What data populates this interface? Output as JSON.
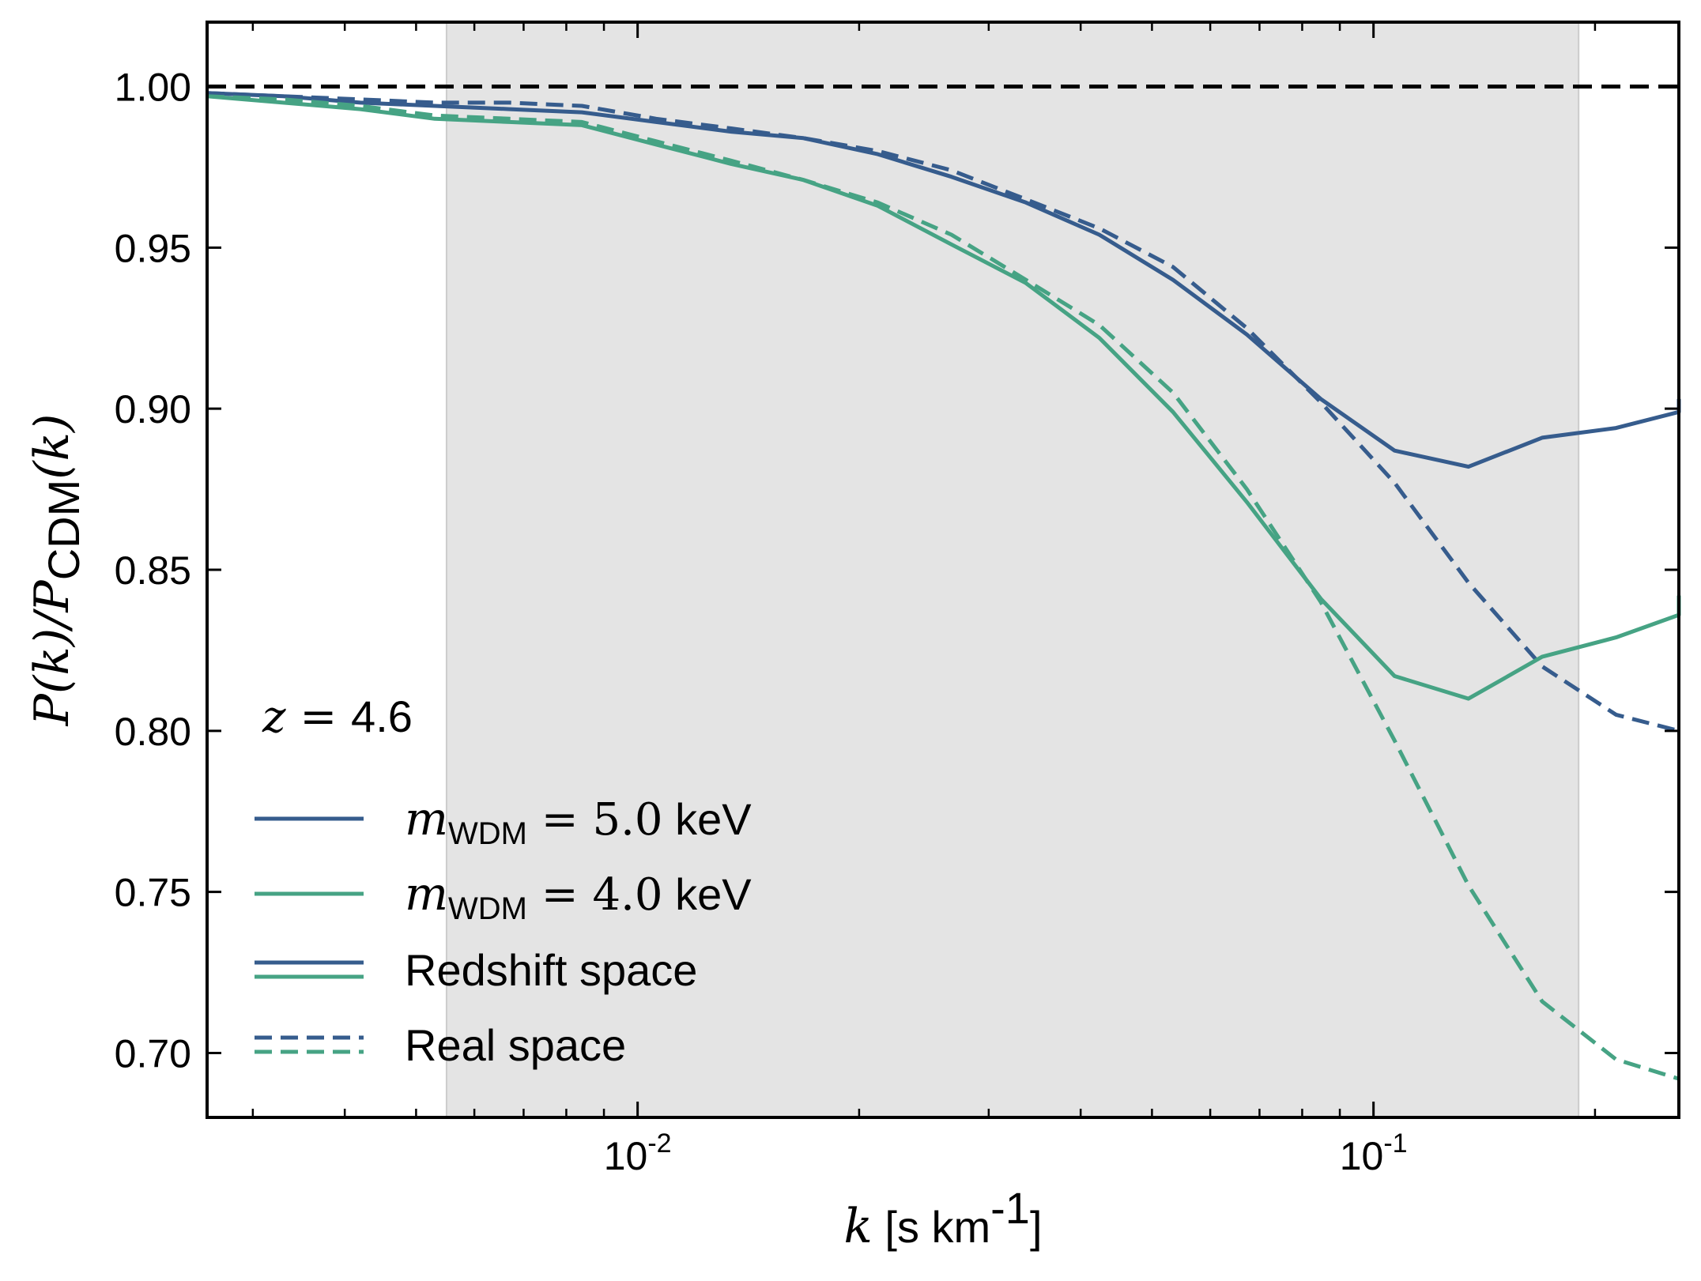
{
  "chart_data": {
    "type": "line",
    "xscale": "log",
    "xlim": [
      0.0026,
      0.26
    ],
    "ylim": [
      0.68,
      1.02
    ],
    "xlabel": {
      "symbol": "k",
      "units": "[s km",
      "exp": "-1",
      "close": "]"
    },
    "ylabel": {
      "text": "P(k)/P",
      "sub": "CDM",
      "tail": "(k)"
    },
    "x_ticks": [
      {
        "value": 0.01,
        "base": "10",
        "exp": "-2"
      },
      {
        "value": 0.1,
        "base": "10",
        "exp": "-1"
      }
    ],
    "y_ticks": [
      {
        "value": 1.0,
        "label": "1.00"
      },
      {
        "value": 0.95,
        "label": "0.95"
      },
      {
        "value": 0.9,
        "label": "0.90"
      },
      {
        "value": 0.85,
        "label": "0.85"
      },
      {
        "value": 0.8,
        "label": "0.80"
      },
      {
        "value": 0.75,
        "label": "0.75"
      },
      {
        "value": 0.7,
        "label": "0.70"
      }
    ],
    "shaded_region": {
      "x": [
        0.0055,
        0.19
      ],
      "color": "#e4e4e4"
    },
    "reference_line": {
      "y": 1.0,
      "style": "dashed",
      "color": "#000000"
    },
    "annotation": {
      "symbol": "z",
      "equals": " = ",
      "value": "4.6"
    },
    "colors": {
      "m5": "#365c8d",
      "m4": "#46a384"
    },
    "series": [
      {
        "name": "m_WDM = 5.0 keV, Redshift space",
        "color": "m5",
        "style": "solid",
        "x": [
          0.0026,
          0.0033,
          0.0042,
          0.0053,
          0.0067,
          0.0084,
          0.0106,
          0.0134,
          0.0168,
          0.0212,
          0.0267,
          0.0337,
          0.0424,
          0.0534,
          0.0673,
          0.0848,
          0.1068,
          0.1346,
          0.1695,
          0.2136,
          0.2691,
          0.26
        ],
        "y": [
          0.998,
          0.997,
          0.995,
          0.994,
          0.993,
          0.992,
          0.989,
          0.986,
          0.984,
          0.979,
          0.972,
          0.964,
          0.954,
          0.94,
          0.923,
          0.903,
          0.887,
          0.882,
          0.891,
          0.894,
          0.899,
          0.903
        ]
      },
      {
        "name": "m_WDM = 5.0 keV, Real space",
        "color": "m5",
        "style": "dashed",
        "x": [
          0.0026,
          0.0033,
          0.0042,
          0.0053,
          0.0067,
          0.0084,
          0.0106,
          0.0134,
          0.0168,
          0.0212,
          0.0267,
          0.0337,
          0.0424,
          0.0534,
          0.0673,
          0.0848,
          0.1068,
          0.1346,
          0.1695,
          0.2136,
          0.2691,
          0.26
        ],
        "y": [
          0.998,
          0.997,
          0.996,
          0.995,
          0.995,
          0.994,
          0.99,
          0.987,
          0.984,
          0.98,
          0.974,
          0.965,
          0.956,
          0.944,
          0.925,
          0.902,
          0.877,
          0.846,
          0.82,
          0.805,
          0.8,
          0.8
        ]
      },
      {
        "name": "m_WDM = 4.0 keV, Redshift space",
        "color": "m4",
        "style": "solid",
        "x": [
          0.0026,
          0.0033,
          0.0042,
          0.0053,
          0.0067,
          0.0084,
          0.0106,
          0.0134,
          0.0168,
          0.0212,
          0.0267,
          0.0337,
          0.0424,
          0.0534,
          0.0673,
          0.0848,
          0.1068,
          0.1346,
          0.1695,
          0.2136,
          0.2691,
          0.26
        ],
        "y": [
          0.997,
          0.995,
          0.993,
          0.99,
          0.989,
          0.988,
          0.982,
          0.976,
          0.971,
          0.963,
          0.951,
          0.939,
          0.922,
          0.899,
          0.871,
          0.841,
          0.817,
          0.81,
          0.823,
          0.829,
          0.836,
          0.842
        ]
      },
      {
        "name": "m_WDM = 4.0 keV, Real space",
        "color": "m4",
        "style": "dashed",
        "x": [
          0.0026,
          0.0033,
          0.0042,
          0.0053,
          0.0067,
          0.0084,
          0.0106,
          0.0134,
          0.0168,
          0.0212,
          0.0267,
          0.0337,
          0.0424,
          0.0534,
          0.0673,
          0.0848,
          0.1068,
          0.1346,
          0.1695,
          0.2136,
          0.2691,
          0.26
        ],
        "y": [
          0.997,
          0.996,
          0.994,
          0.991,
          0.99,
          0.989,
          0.983,
          0.977,
          0.971,
          0.964,
          0.954,
          0.94,
          0.926,
          0.905,
          0.875,
          0.84,
          0.797,
          0.752,
          0.716,
          0.698,
          0.692,
          0.692
        ]
      }
    ],
    "legend": {
      "position": "lower-left",
      "entries": [
        {
          "kind": "line",
          "color": "m5",
          "style": "solid",
          "math": "m",
          "sub": "WDM",
          "eq": " = 5.0",
          "unit": "keV"
        },
        {
          "kind": "line",
          "color": "m4",
          "style": "solid",
          "math": "m",
          "sub": "WDM",
          "eq": " = 4.0",
          "unit": "keV"
        },
        {
          "kind": "pair",
          "style": "solid",
          "label": "Redshift space"
        },
        {
          "kind": "pair",
          "style": "dashed",
          "label": "Real space"
        }
      ]
    }
  }
}
